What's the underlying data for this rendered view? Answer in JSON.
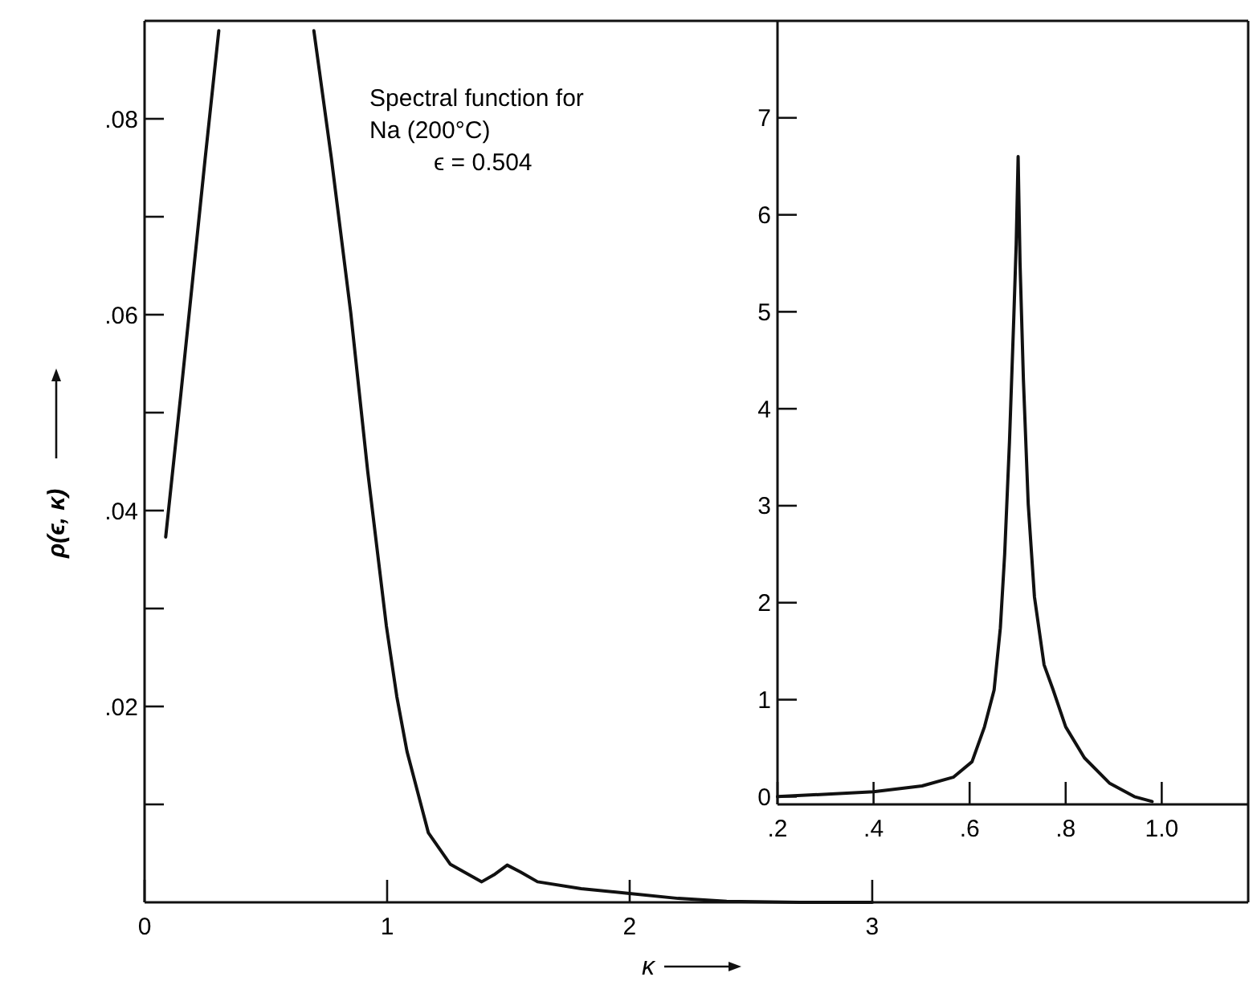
{
  "chart_data": [
    {
      "type": "line",
      "xlabel": "κ",
      "ylabel": "ρ(ϵ, κ)",
      "annotations": [
        "Spectral function for",
        "Na (200°C)",
        "ϵ = 0.504"
      ],
      "xlim": [
        0,
        4.55
      ],
      "ylim": [
        0,
        0.09
      ],
      "xticks": [
        0,
        1,
        2,
        3
      ],
      "yticks": [
        {
          "value": 0.01,
          "label": null
        },
        {
          "value": 0.02,
          "label": ".02"
        },
        {
          "value": 0.03,
          "label": null
        },
        {
          "value": 0.04,
          "label": ".04"
        },
        {
          "value": 0.05,
          "label": null
        },
        {
          "value": 0.06,
          "label": ".06"
        },
        {
          "value": 0.07,
          "label": null
        },
        {
          "value": 0.08,
          "label": ".08"
        }
      ],
      "series": [
        {
          "color": "#111111",
          "x": [
            0.087,
            0.15,
            0.2,
            0.25,
            0.306,
            0.5,
            0.698,
            0.77,
            0.85,
            0.92,
            0.997,
            1.04,
            1.082,
            1.17,
            1.26,
            1.39,
            1.44,
            1.495,
            1.55,
            1.62,
            1.8,
            2.0,
            2.2,
            2.4,
            2.7,
            3.0
          ],
          "values": [
            0.0373,
            0.052,
            0.064,
            0.076,
            0.089,
            null,
            0.089,
            0.076,
            0.0602,
            0.044,
            0.0282,
            0.021,
            0.0154,
            0.0071,
            0.0039,
            0.0021,
            0.0028,
            0.0038,
            0.0031,
            0.0021,
            0.0014,
            0.0009,
            0.0004,
            0.0001,
            0,
            0
          ]
        }
      ]
    },
    {
      "type": "line",
      "xlim": [
        0.2,
        1.18
      ],
      "ylim": [
        -0.08,
        8
      ],
      "xticks": [
        {
          "value": 0.2,
          "label": ".2"
        },
        {
          "value": 0.4,
          "label": ".4"
        },
        {
          "value": 0.6,
          "label": ".6"
        },
        {
          "value": 0.8,
          "label": ".8"
        },
        {
          "value": 1.0,
          "label": "1.0"
        }
      ],
      "yticks": [
        0,
        1,
        2,
        3,
        4,
        5,
        6,
        7
      ],
      "series": [
        {
          "color": "#111111",
          "x": [
            0.2,
            0.4,
            0.501,
            0.566,
            0.605,
            0.631,
            0.651,
            0.664,
            0.673,
            0.683,
            0.692,
            0.697,
            0.701,
            0.705,
            0.712,
            0.722,
            0.735,
            0.755,
            0.774,
            0.8,
            0.839,
            0.891,
            0.943,
            0.98
          ],
          "values": [
            0.0,
            0.05,
            0.11,
            0.2,
            0.36,
            0.72,
            1.1,
            1.74,
            2.5,
            3.66,
            4.94,
            5.7,
            6.6,
            5.5,
            4.3,
            3.02,
            2.06,
            1.36,
            1.1,
            0.72,
            0.4,
            0.14,
            0.0,
            -0.05
          ]
        }
      ]
    }
  ]
}
